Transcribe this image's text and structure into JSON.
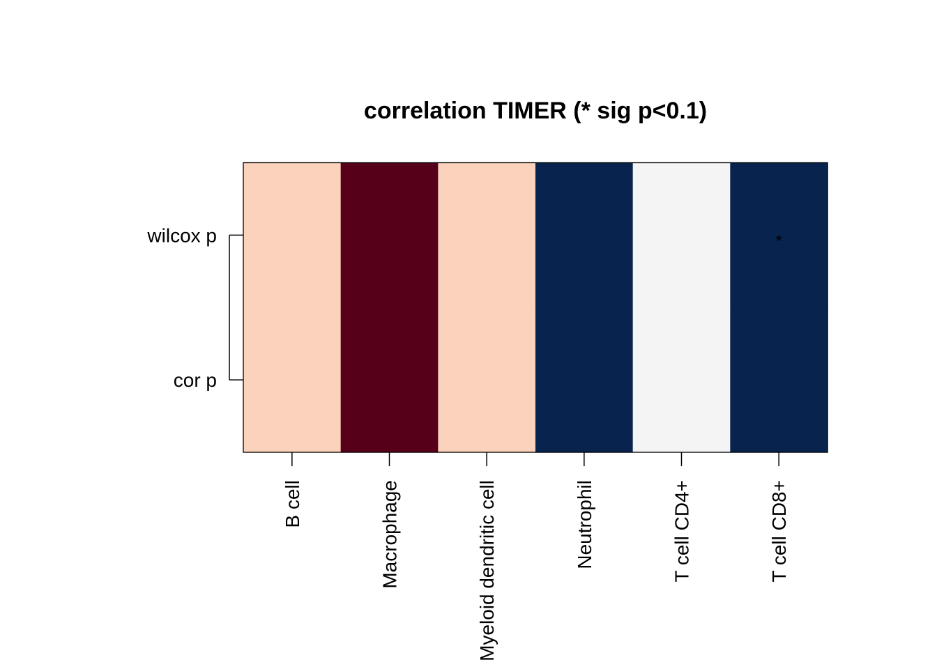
{
  "chart_data": {
    "type": "heatmap",
    "title": "correlation TIMER (* sig p<0.1)",
    "columns": [
      "B cell",
      "Macrophage",
      "Myeloid dendritic cell",
      "Neutrophil",
      "T cell CD4+",
      "T cell CD8+"
    ],
    "rows": [
      "wilcox p",
      "cor p"
    ],
    "cell_colors": [
      [
        "#FBD3BC",
        "#560019",
        "#FBD3BC",
        "#08234D",
        "#F4F4F4",
        "#08234D"
      ],
      [
        "#FBD3BC",
        "#560019",
        "#FBD3BC",
        "#08234D",
        "#F4F4F4",
        "#08234D"
      ]
    ],
    "significance": [
      [
        "",
        "",
        "",
        "",
        "",
        "*"
      ],
      [
        "",
        "",
        "",
        "",
        "",
        ""
      ]
    ],
    "grid": false
  }
}
